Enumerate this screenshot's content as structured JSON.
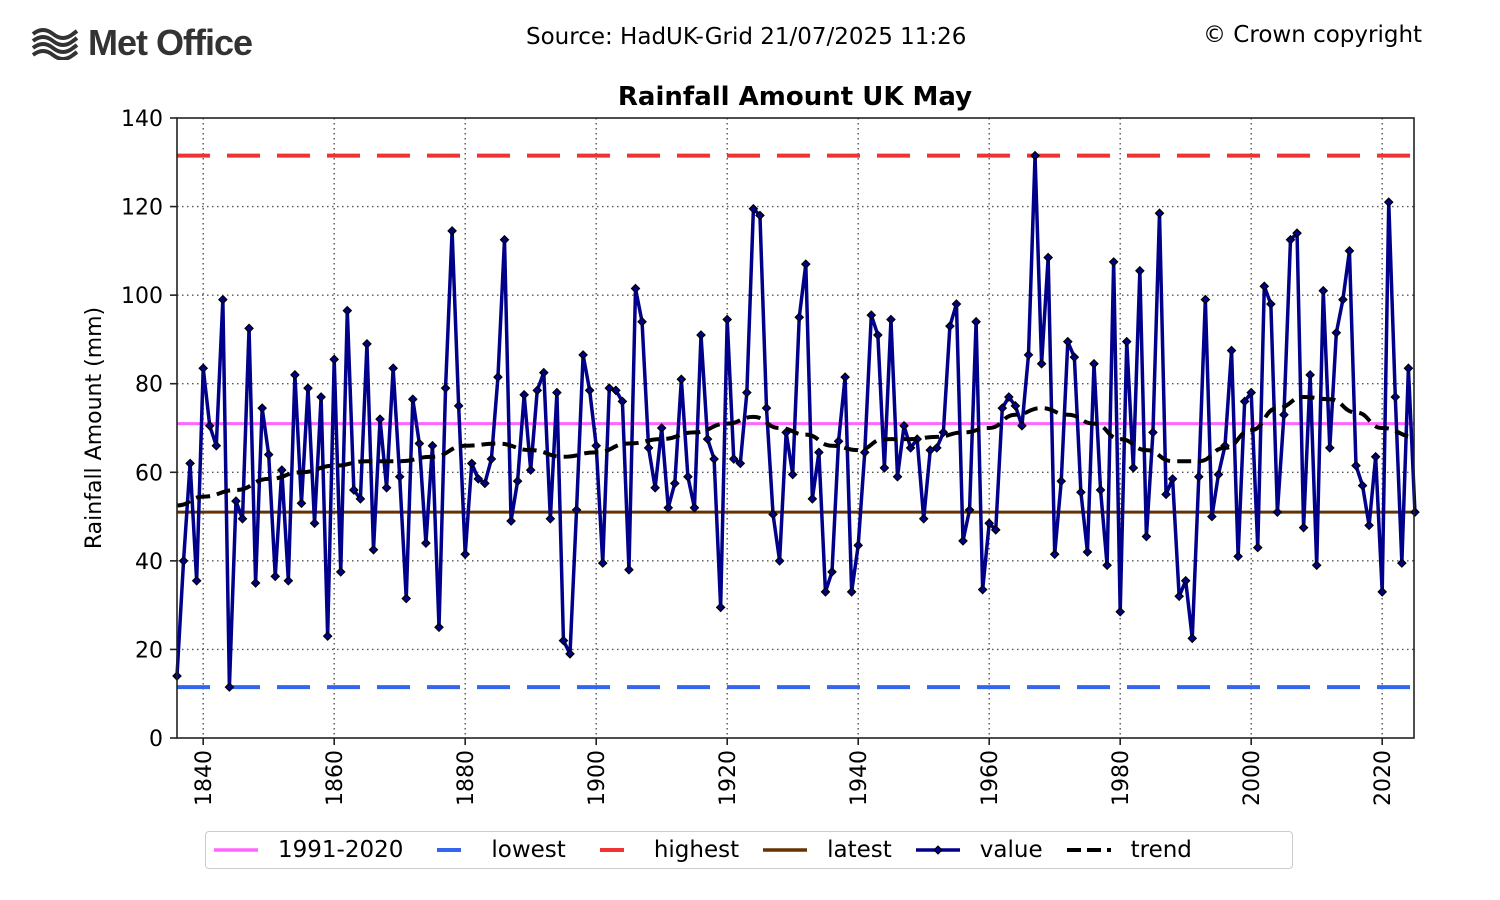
{
  "header": {
    "logo_text": "Met Office",
    "source": "Source: HadUK-Grid 21/07/2025 11:26",
    "copyright": "© Crown copyright"
  },
  "chart_data": {
    "type": "line",
    "title": "Rainfall Amount UK May",
    "xlabel": "",
    "ylabel": "Rainfall Amount (mm)",
    "xlim": [
      1836,
      2025
    ],
    "ylim": [
      0,
      140
    ],
    "x_ticks": [
      1840,
      1860,
      1880,
      1900,
      1920,
      1940,
      1960,
      1980,
      2000,
      2020
    ],
    "y_ticks": [
      0,
      20,
      40,
      60,
      80,
      100,
      120,
      140
    ],
    "grid": true,
    "legend_position": "bottom",
    "colors": {
      "value": "#00008b",
      "trend": "#000000",
      "baseline": "#ff66ff",
      "lowest": "#3366ee",
      "highest": "#ee3333",
      "latest": "#663300"
    },
    "reference_lines": {
      "1991-2020": 71.0,
      "lowest": 11.5,
      "highest": 131.5,
      "latest": 51.0
    },
    "legend": [
      {
        "key": "baseline",
        "label": "1991-2020",
        "style": "solid"
      },
      {
        "key": "lowest",
        "label": "lowest",
        "style": "dashed"
      },
      {
        "key": "highest",
        "label": "highest",
        "style": "dashed"
      },
      {
        "key": "latest",
        "label": "latest",
        "style": "solid"
      },
      {
        "key": "value",
        "label": "value",
        "style": "marker"
      },
      {
        "key": "trend",
        "label": "trend",
        "style": "dashed"
      }
    ],
    "start_year": 1836,
    "series": [
      {
        "name": "value",
        "values": [
          14,
          40,
          62,
          35.5,
          83.5,
          70.5,
          66,
          99,
          11.5,
          53.5,
          49.5,
          92.5,
          35,
          74.5,
          64,
          36.5,
          60.5,
          35.5,
          82,
          53,
          79,
          48.5,
          77,
          23,
          85.5,
          37.5,
          96.5,
          56,
          54,
          89,
          42.5,
          72,
          56.5,
          83.5,
          59,
          31.5,
          76.5,
          66.5,
          44,
          66,
          25,
          79,
          114.5,
          75,
          41.5,
          62,
          58.5,
          57.5,
          63,
          81.5,
          112.5,
          49,
          58,
          77.5,
          60.5,
          78.5,
          82.5,
          49.5,
          78,
          22,
          19,
          51.5,
          86.5,
          78.5,
          66,
          39.5,
          79,
          78.5,
          76,
          38,
          101.5,
          94,
          65.5,
          56.5,
          70,
          52,
          57.5,
          81,
          59,
          52,
          91,
          67.5,
          63,
          29.5,
          94.5,
          63,
          62,
          78,
          119.5,
          118,
          74.5,
          50.5,
          40,
          69,
          59.5,
          95,
          107,
          54,
          64.5,
          33,
          37.5,
          67,
          81.5,
          33,
          43.5,
          64.5,
          95.5,
          91,
          61,
          94.5,
          59,
          70.5,
          65.5,
          67.5,
          49.5,
          65,
          65.5,
          69,
          93,
          98,
          44.5,
          51.5,
          94,
          33.5,
          48.5,
          47,
          74.5,
          77,
          75,
          70.5,
          86.5,
          131.5,
          84.5,
          108.5,
          41.5,
          58,
          89.5,
          86,
          55.5,
          42,
          84.5,
          56,
          39,
          107.5,
          28.5,
          89.5,
          61,
          105.5,
          45.5,
          69,
          118.5,
          55,
          58.5,
          32,
          35.5,
          22.5,
          59,
          99,
          50,
          59.5,
          66,
          87.5,
          41,
          76,
          78,
          43,
          102,
          98,
          51,
          73,
          112.5,
          114,
          47.5,
          82,
          39,
          101,
          65.5,
          91.5,
          99,
          110,
          61.5,
          57,
          48,
          63.5,
          33,
          121,
          77,
          39.5,
          83.5,
          51
        ]
      },
      {
        "name": "trend",
        "x": [
          1836,
          1840,
          1845,
          1850,
          1855,
          1860,
          1865,
          1870,
          1875,
          1880,
          1885,
          1890,
          1895,
          1900,
          1905,
          1910,
          1915,
          1920,
          1924,
          1928,
          1932,
          1936,
          1940,
          1944,
          1948,
          1952,
          1956,
          1960,
          1964,
          1968,
          1972,
          1976,
          1980,
          1984,
          1988,
          1992,
          1996,
          2000,
          2004,
          2008,
          2012,
          2016,
          2020,
          2025
        ],
        "values": [
          52.5,
          54.5,
          56,
          58.5,
          60,
          61.5,
          62.5,
          62.5,
          63.5,
          66,
          66.5,
          65,
          63.5,
          64.5,
          66.5,
          67.5,
          69,
          71,
          72.5,
          70,
          68.5,
          66,
          65,
          67.5,
          67.5,
          68,
          69,
          70,
          73,
          74.5,
          73,
          71,
          67.5,
          65,
          62.5,
          62.5,
          65.5,
          69.5,
          74.5,
          77,
          76.5,
          73.5,
          70,
          68
        ]
      }
    ]
  }
}
